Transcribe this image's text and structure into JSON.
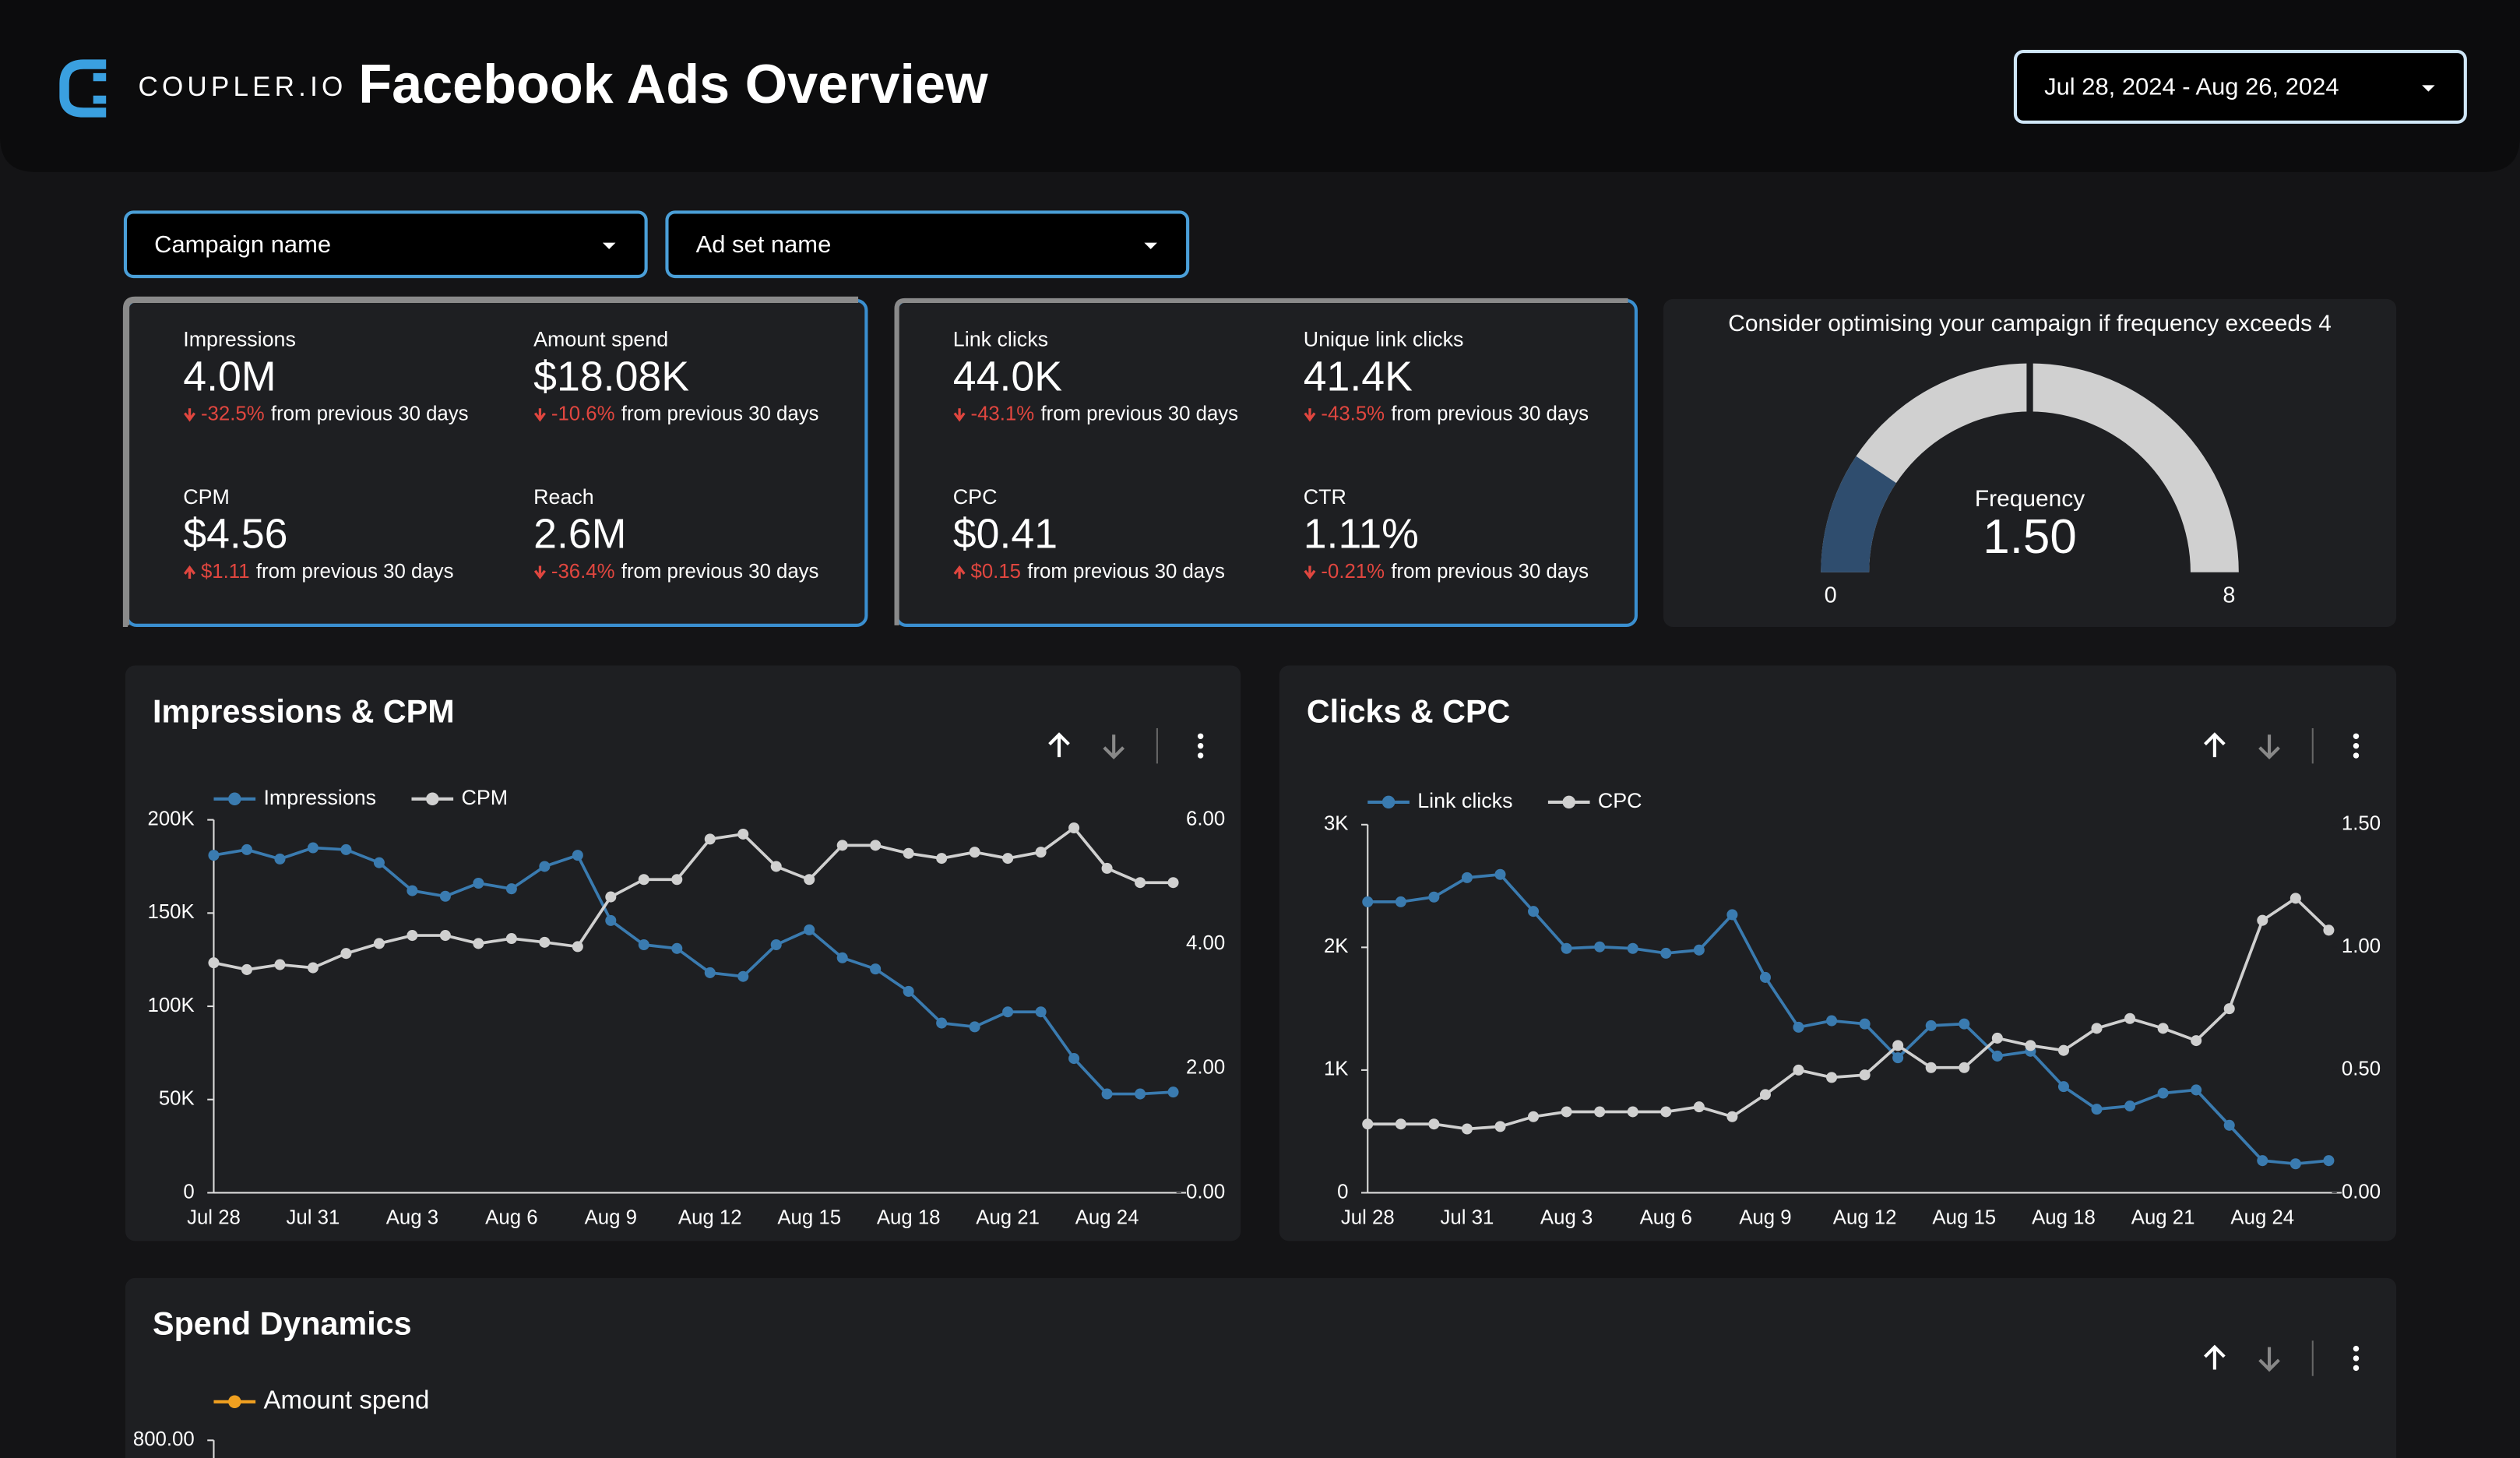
{
  "header": {
    "logo": "COUPLER.IO",
    "title": "Facebook Ads Overview",
    "date_range": "Jul 28, 2024 - Aug 26, 2024"
  },
  "filters": [
    "Campaign name",
    "Ad set name"
  ],
  "scorecards": [
    [
      {
        "label": "Impressions",
        "value": "4.0M",
        "change": "-32.5%",
        "note": "from previous 30 days"
      },
      {
        "label": "Amount spend",
        "value": "$18.08K",
        "change": "-10.6%",
        "note": "from previous 30 days"
      },
      {
        "label": "CPM",
        "value": "$4.56",
        "change": "$1.11",
        "note": "from previous 30 days"
      },
      {
        "label": "Reach",
        "value": "2.6M",
        "change": "-36.4%",
        "note": "from previous 30 days"
      }
    ],
    [
      {
        "label": "Link clicks",
        "value": "44.0K",
        "change": "-43.1%",
        "note": "from previous 30 days"
      },
      {
        "label": "Unique link clicks",
        "value": "41.4K",
        "change": "-43.5%",
        "note": "from previous 30 days"
      },
      {
        "label": "CPC",
        "value": "$0.41",
        "change": "$0.15",
        "note": "from previous 30 days"
      },
      {
        "label": "CTR",
        "value": "1.11%",
        "change": "-0.21%",
        "note": "from previous 30 days"
      }
    ]
  ],
  "gauge": {
    "note": "Consider optimising your campaign if frequency exceeds 4",
    "label": "Frequency",
    "value": 1.5,
    "value_label": "1.50",
    "min": 0,
    "max": 8,
    "threshold": 4,
    "color": "#2f4d6e",
    "track_color": "#d0d0d0"
  },
  "charts": [
    {
      "type": "line",
      "title": "Impressions & CPM",
      "categories": [
        "Jul 28",
        null,
        null,
        "Jul 31",
        null,
        null,
        "Aug 3",
        null,
        null,
        "Aug 6",
        null,
        null,
        "Aug 9",
        null,
        null,
        "Aug 12",
        null,
        null,
        "Aug 15",
        null,
        null,
        "Aug 18",
        null,
        null,
        "Aug 21",
        null,
        null,
        "Aug 24",
        null,
        null
      ],
      "series": [
        {
          "name": "Impressions",
          "color": "#3a7bb0",
          "axis": "y",
          "values": [
            181000,
            184000,
            179000,
            185000,
            184000,
            177000,
            162000,
            159000,
            166000,
            163000,
            175000,
            181000,
            146000,
            133000,
            131000,
            118000,
            116000,
            133000,
            141000,
            126000,
            120000,
            108000,
            91000,
            89000,
            97000,
            97000,
            72000,
            53000,
            53000,
            54000
          ]
        },
        {
          "name": "CPM",
          "color": "#d0d0d0",
          "axis": "y2",
          "values": [
            3.7,
            3.59,
            3.67,
            3.62,
            3.85,
            4.01,
            4.14,
            4.14,
            4.01,
            4.09,
            4.03,
            3.96,
            4.76,
            5.04,
            5.04,
            5.69,
            5.77,
            5.25,
            5.04,
            5.59,
            5.59,
            5.46,
            5.38,
            5.48,
            5.38,
            5.48,
            5.87,
            5.22,
            4.99,
            4.99
          ]
        }
      ],
      "ylim": [
        0,
        200000
      ],
      "yticks": [
        0,
        {
          "value": 50000,
          "label": "50K"
        },
        {
          "value": 100000,
          "label": "100K"
        },
        {
          "value": 150000,
          "label": "150K"
        },
        {
          "value": 200000,
          "label": "200K"
        }
      ],
      "y2lim": [
        0,
        6
      ],
      "y2ticks": [
        {
          "value": 0,
          "label": "0.00"
        },
        {
          "value": 2,
          "label": "2.00"
        },
        {
          "value": 4,
          "label": "4.00"
        },
        {
          "value": 6,
          "label": "6.00"
        }
      ]
    },
    {
      "type": "line",
      "title": "Clicks & CPC",
      "categories": [
        "Jul 28",
        null,
        null,
        "Jul 31",
        null,
        null,
        "Aug 3",
        null,
        null,
        "Aug 6",
        null,
        null,
        "Aug 9",
        null,
        null,
        "Aug 12",
        null,
        null,
        "Aug 15",
        null,
        null,
        "Aug 18",
        null,
        null,
        "Aug 21",
        null,
        null,
        "Aug 24",
        null,
        null
      ],
      "series": [
        {
          "name": "Link clicks",
          "color": "#3a7bb0",
          "axis": "y",
          "values": [
            2371,
            2371,
            2410,
            2568,
            2594,
            2293,
            1991,
            2004,
            1991,
            1952,
            1978,
            2266,
            1755,
            1349,
            1402,
            1376,
            1100,
            1362,
            1376,
            1114,
            1153,
            865,
            681,
            707,
            812,
            838,
            550,
            262,
            236,
            262
          ]
        },
        {
          "name": "CPC",
          "color": "#d0d0d0",
          "axis": "y2",
          "values": [
            0.28,
            0.28,
            0.28,
            0.26,
            0.27,
            0.31,
            0.33,
            0.33,
            0.33,
            0.33,
            0.35,
            0.31,
            0.4,
            0.5,
            0.47,
            0.48,
            0.6,
            0.51,
            0.51,
            0.63,
            0.6,
            0.58,
            0.67,
            0.71,
            0.67,
            0.62,
            0.75,
            1.11,
            1.2,
            1.07
          ]
        }
      ],
      "ylim": [
        0,
        3000
      ],
      "yticks": [
        0,
        {
          "value": 1000,
          "label": "1K"
        },
        {
          "value": 2000,
          "label": "2K"
        },
        {
          "value": 3000,
          "label": "3K"
        }
      ],
      "y2lim": [
        0,
        1.5
      ],
      "y2ticks": [
        {
          "value": 0,
          "label": "0.00"
        },
        {
          "value": 0.5,
          "label": "0.50"
        },
        {
          "value": 1,
          "label": "1.00"
        },
        {
          "value": 1.5,
          "label": "1.50"
        }
      ]
    },
    {
      "type": "line",
      "title": "Spend Dynamics",
      "series": [
        {
          "name": "Amount spend",
          "color": "#f0a020"
        }
      ],
      "yticks": [
        {
          "value": 800,
          "label": "800.00"
        }
      ]
    }
  ]
}
